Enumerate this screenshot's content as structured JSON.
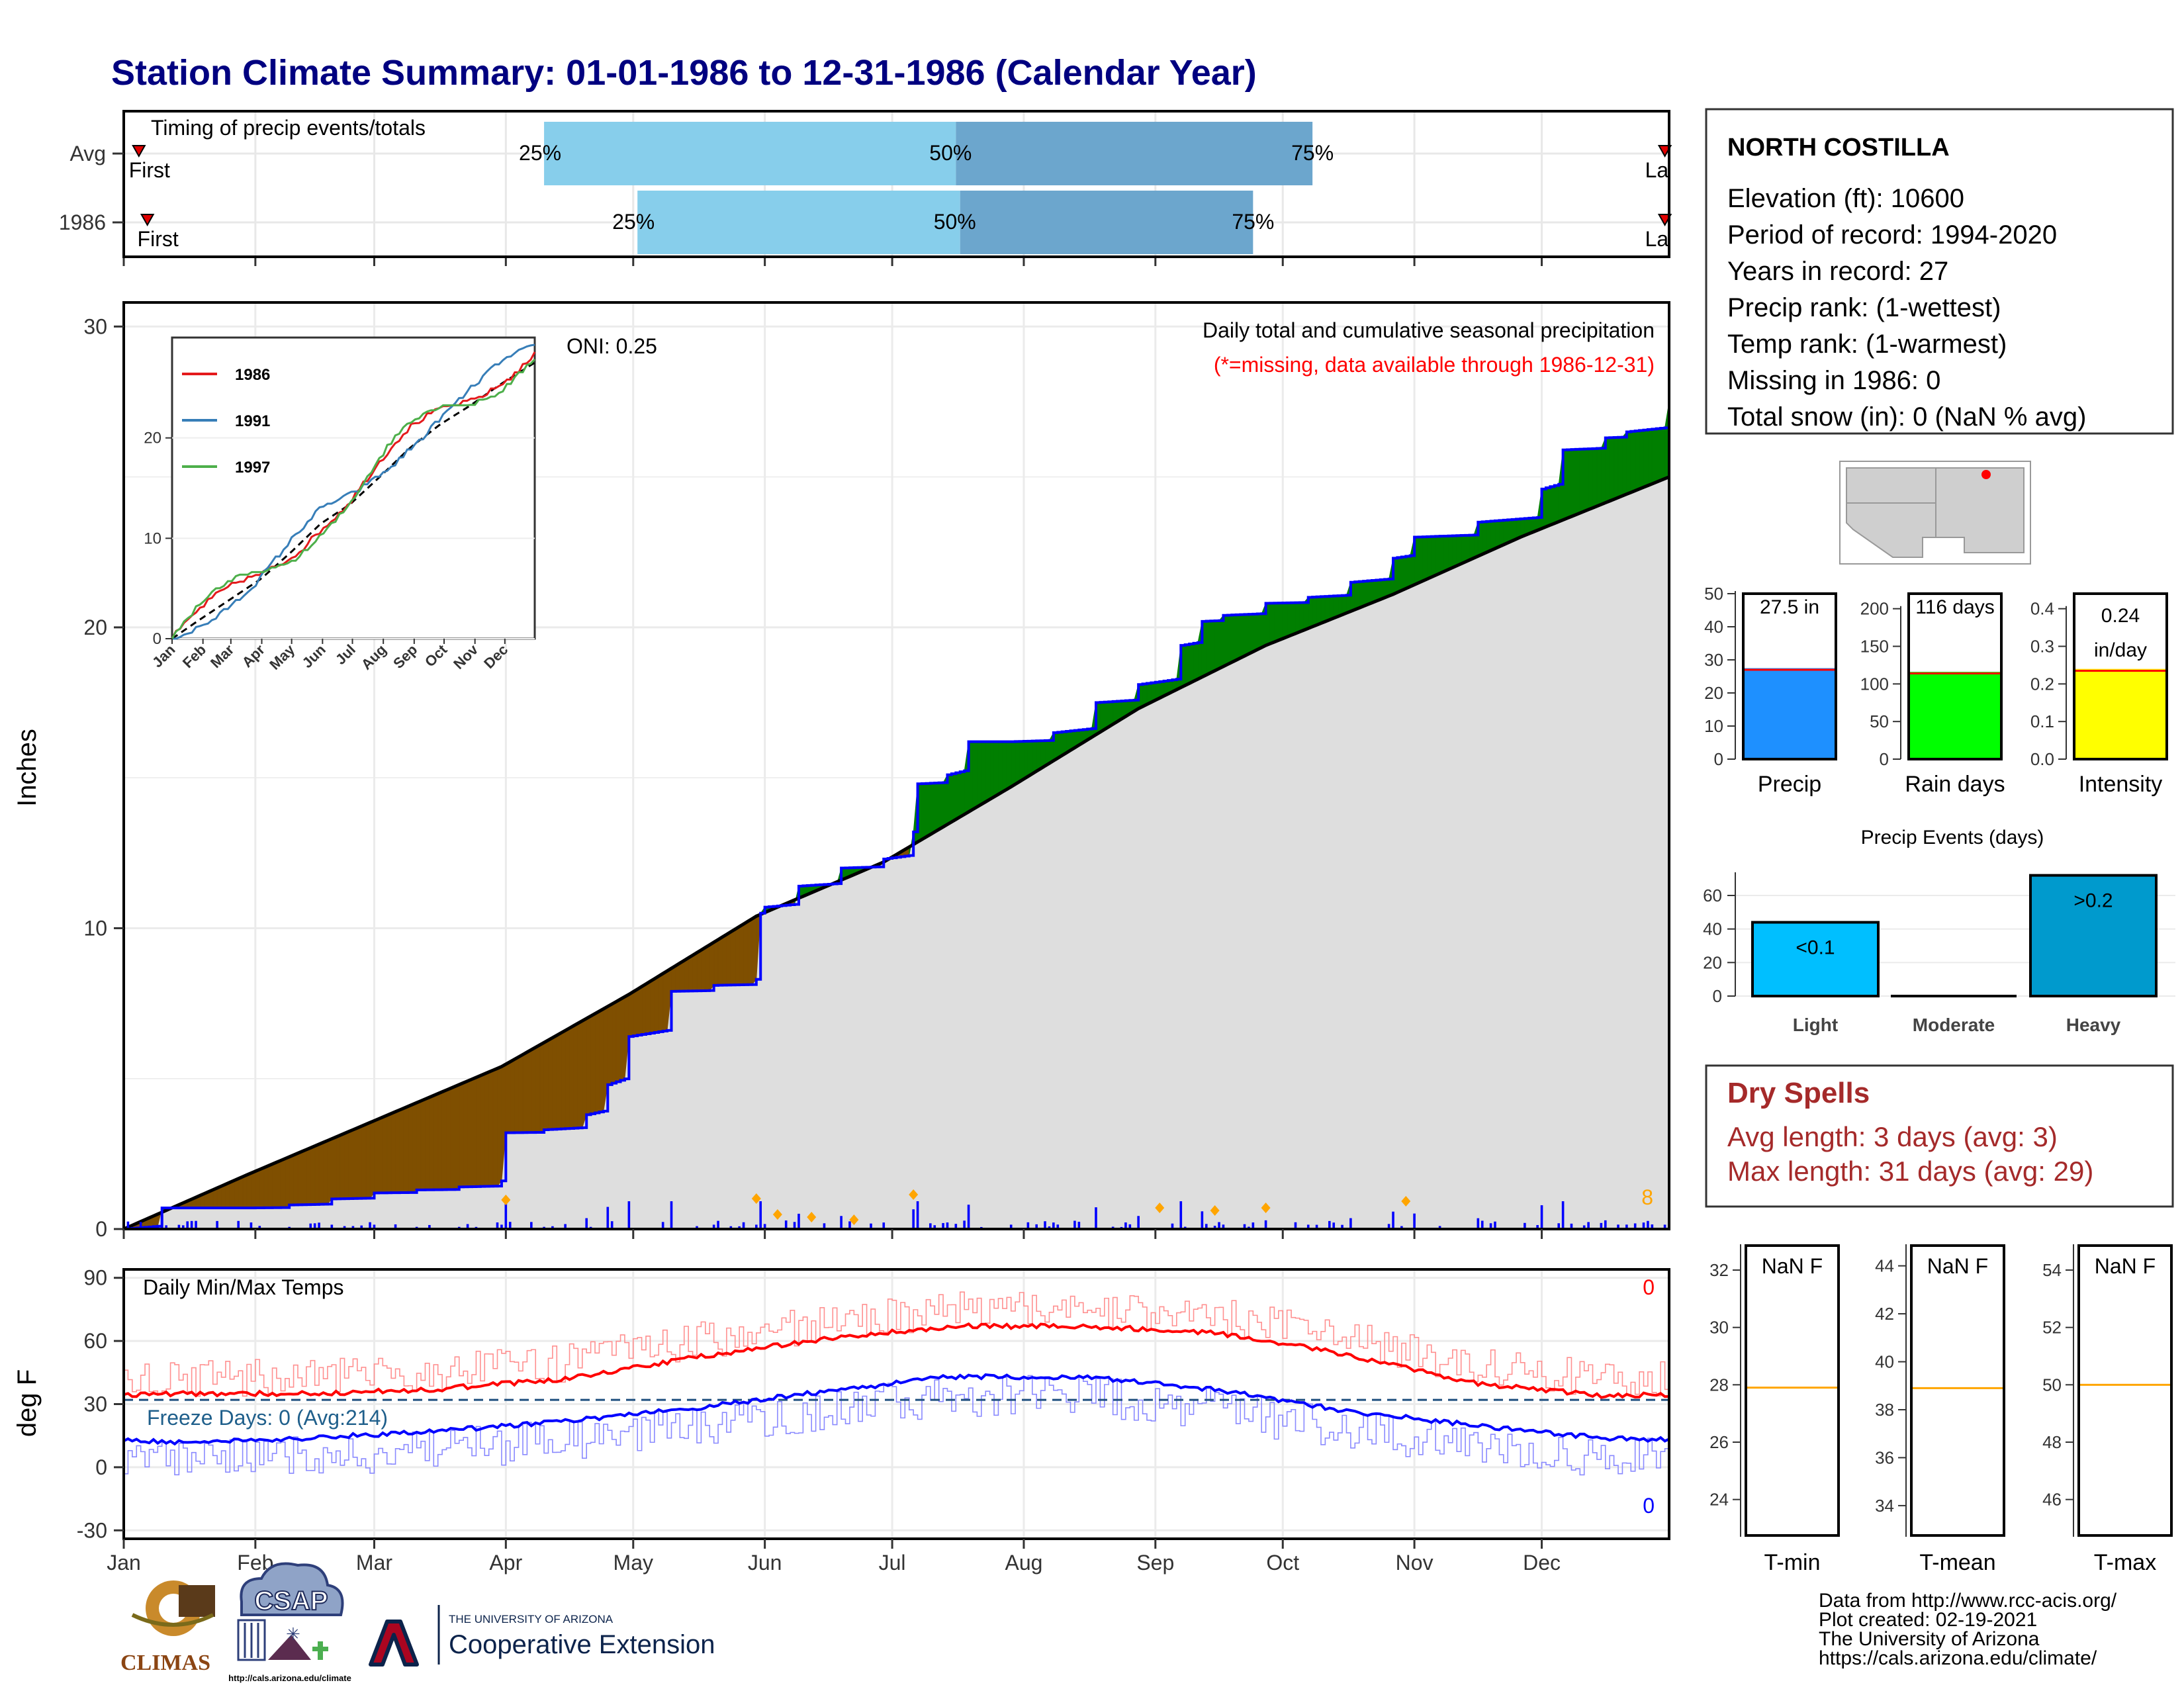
{
  "title": "Station Climate Summary: 01-01-1986 to 12-31-1986 (Calendar Year)",
  "colors": {
    "title": "#000080",
    "light_blue": "#87CEEB",
    "mid_blue": "#6CA6CD",
    "brown": "#7F4F00",
    "green": "#007F00",
    "precip_bar": "#1E90FF",
    "raindays_bar": "#00FF00",
    "intensity_bar": "#FFFF00",
    "light_event": "#00BFFF",
    "heavy_event": "#009ACD",
    "dry_spell_text": "#A52A2A",
    "orange": "#FFA500"
  },
  "timing": {
    "title": "Timing of precip events/totals",
    "rows": [
      {
        "label": "Avg",
        "first": "First",
        "last": "Last",
        "p25": "25%",
        "p50": "50%",
        "p75": "75%",
        "first_doy": 3,
        "p25_doy": 100,
        "p50_doy": 197,
        "p75_doy": 281,
        "last_doy": 364
      },
      {
        "label": "1986",
        "first": "First",
        "last": "Last",
        "p25": "25%",
        "p50": "50%",
        "p75": "75%",
        "first_doy": 5,
        "p25_doy": 122,
        "p50_doy": 198,
        "p75_doy": 267,
        "last_doy": 364
      }
    ]
  },
  "precip_panel": {
    "annotation_title": "Daily total and cumulative seasonal precipitation",
    "annotation_missing": "(*=missing, data available through 1986-12-31)",
    "oni": "ONI: 0.25",
    "ylabel": "Inches",
    "yticks": [
      "0",
      "10",
      "20",
      "30"
    ],
    "count_label": "8"
  },
  "inset": {
    "legend": [
      "1986",
      "1991",
      "1997"
    ],
    "yticks": [
      "0",
      "10",
      "20"
    ],
    "months": [
      "Jan",
      "Feb",
      "Mar",
      "Apr",
      "May",
      "Jun",
      "Jul",
      "Aug",
      "Sep",
      "Oct",
      "Nov",
      "Dec"
    ]
  },
  "temp_panel": {
    "title": "Daily Min/Max Temps",
    "freeze": "Freeze Days: 0 (Avg:214)",
    "ylabel": "deg F",
    "yticks": [
      "-30",
      "0",
      "30",
      "60",
      "90"
    ],
    "max_count": "0",
    "min_count": "0"
  },
  "months": [
    "Jan",
    "Feb",
    "Mar",
    "Apr",
    "May",
    "Jun",
    "Jul",
    "Aug",
    "Sep",
    "Oct",
    "Nov",
    "Dec"
  ],
  "station": {
    "name": "NORTH COSTILLA",
    "lines": [
      "Elevation (ft): 10600",
      "Period of record: 1994-2020",
      "Years in record: 27",
      "Precip rank:  (1-wettest)",
      "Temp rank:  (1-warmest)",
      "Missing in 1986: 0",
      "Total snow (in): 0 (NaN % avg)"
    ]
  },
  "bars": {
    "precip": {
      "label": "Precip",
      "value_label": "27.5 in",
      "value": 27.5,
      "avg": 27.0,
      "yticks": [
        "0",
        "10",
        "20",
        "30",
        "40",
        "50"
      ],
      "ymax": 50
    },
    "raindays": {
      "label": "Rain days",
      "value_label": "116 days",
      "value": 116,
      "avg": 114,
      "yticks": [
        "0",
        "50",
        "100",
        "150",
        "200"
      ],
      "ymax": 220
    },
    "intensity": {
      "label": "Intensity",
      "value_label_1": "0.24",
      "value_label_2": "in/day",
      "value": 0.24,
      "avg": 0.235,
      "yticks": [
        "0.0",
        "0.1",
        "0.2",
        "0.3",
        "0.4"
      ],
      "ymax": 0.44
    }
  },
  "events": {
    "title": "Precip Events (days)",
    "categories": [
      "Light",
      "Moderate",
      "Heavy"
    ],
    "labels": [
      "<0.1",
      "",
      ">0.2"
    ],
    "values": [
      44,
      0,
      72
    ],
    "yticks": [
      "0",
      "20",
      "40",
      "60"
    ]
  },
  "dry_spells": {
    "title": "Dry Spells",
    "avg": "Avg length: 3 days (avg: 3)",
    "max": "Max length: 31 days (avg: 29)"
  },
  "temp_boxes": [
    {
      "label": "T-min",
      "value": "NaN F",
      "yticks": [
        "24",
        "26",
        "28",
        "30",
        "32"
      ],
      "line": 27.9
    },
    {
      "label": "T-mean",
      "value": "NaN F",
      "yticks": [
        "34",
        "36",
        "38",
        "40",
        "42",
        "44"
      ],
      "line": 38.9
    },
    {
      "label": "T-max",
      "value": "NaN F",
      "yticks": [
        "46",
        "48",
        "50",
        "52",
        "54"
      ],
      "line": 50.0
    }
  ],
  "footer": {
    "lines": [
      "Data from http://www.rcc-acis.org/",
      "Plot created: 02-19-2021",
      "The University of Arizona",
      "https://cals.arizona.edu/climate/"
    ],
    "logo_climas": "CLIMAS",
    "logo_csap": "CSAP",
    "csap_url": "http://cals.arizona.edu/climate",
    "ua_line1": "THE UNIVERSITY OF ARIZONA",
    "ua_line2": "Cooperative Extension"
  },
  "chart_data": [
    {
      "type": "area",
      "title": "Daily total and cumulative seasonal precipitation",
      "ylabel": "Inches",
      "ylim": [
        0,
        30
      ],
      "series": [
        {
          "name": "",
          "x_doy": [
            1,
            10,
            20,
            30,
            40,
            50,
            60,
            70,
            80,
            90,
            91,
            100,
            110,
            115,
            120,
            130,
            140,
            150,
            151,
            152,
            160,
            170,
            180,
            187,
            188,
            195,
            200,
            210,
            220,
            230,
            240,
            250,
            255,
            260,
            270,
            280,
            290,
            300,
            305,
            320,
            335,
            340,
            350,
            355,
            365
          ],
          "values": [
            0,
            0.7,
            0.7,
            0.7,
            0.8,
            1.0,
            1.2,
            1.3,
            1.4,
            1.6,
            3.2,
            3.3,
            3.8,
            4.8,
            6.4,
            7.9,
            8.1,
            8.3,
            10.5,
            10.7,
            11.4,
            12.0,
            12.3,
            13.2,
            14.8,
            15.1,
            16.2,
            16.2,
            16.5,
            17.5,
            18.1,
            19.4,
            20.2,
            20.4,
            20.8,
            21.0,
            21.5,
            22.3,
            23.0,
            23.5,
            24.6,
            25.9,
            26.3,
            26.5,
            27.5
          ]
        },
        {
          "name": "",
          "x_doy": [
            1,
            30,
            60,
            90,
            120,
            150,
            180,
            210,
            240,
            270,
            300,
            330,
            365
          ],
          "values": [
            0,
            1.8,
            3.6,
            5.4,
            7.8,
            10.4,
            12.2,
            14.7,
            17.3,
            19.4,
            21.1,
            23.0,
            25.0
          ]
        }
      ]
    },
    {
      "type": "line",
      "title": "Daily Min/Max Temps",
      "ylabel": "deg F",
      "ylim": [
        -30,
        90
      ],
      "x": [
        "Jan",
        "Feb",
        "Mar",
        "Apr",
        "May",
        "Jun",
        "Jul",
        "Aug",
        "Sep",
        "Oct",
        "Nov",
        "Dec"
      ],
      "series": [
        {
          "name": "",
          "values": [
            35,
            35,
            37,
            42,
            52,
            61,
            67,
            67,
            64,
            54,
            40,
            34
          ]
        },
        {
          "name": "",
          "values": [
            12,
            14,
            17,
            22,
            28,
            36,
            43,
            43,
            37,
            27,
            20,
            14
          ]
        },
        {
          "name": "",
          "values": [
            32,
            32,
            32,
            32,
            32,
            32,
            32,
            32,
            32,
            32,
            32,
            32
          ]
        }
      ]
    },
    {
      "type": "bar",
      "title": "Precip Events (days)",
      "categories": [
        "Light",
        "Moderate",
        "Heavy"
      ],
      "values": [
        44,
        0,
        72
      ]
    },
    {
      "type": "bar",
      "categories": [
        "Precip",
        "Rain days",
        "Intensity"
      ],
      "values": [
        27.5,
        116,
        0.24
      ]
    }
  ]
}
